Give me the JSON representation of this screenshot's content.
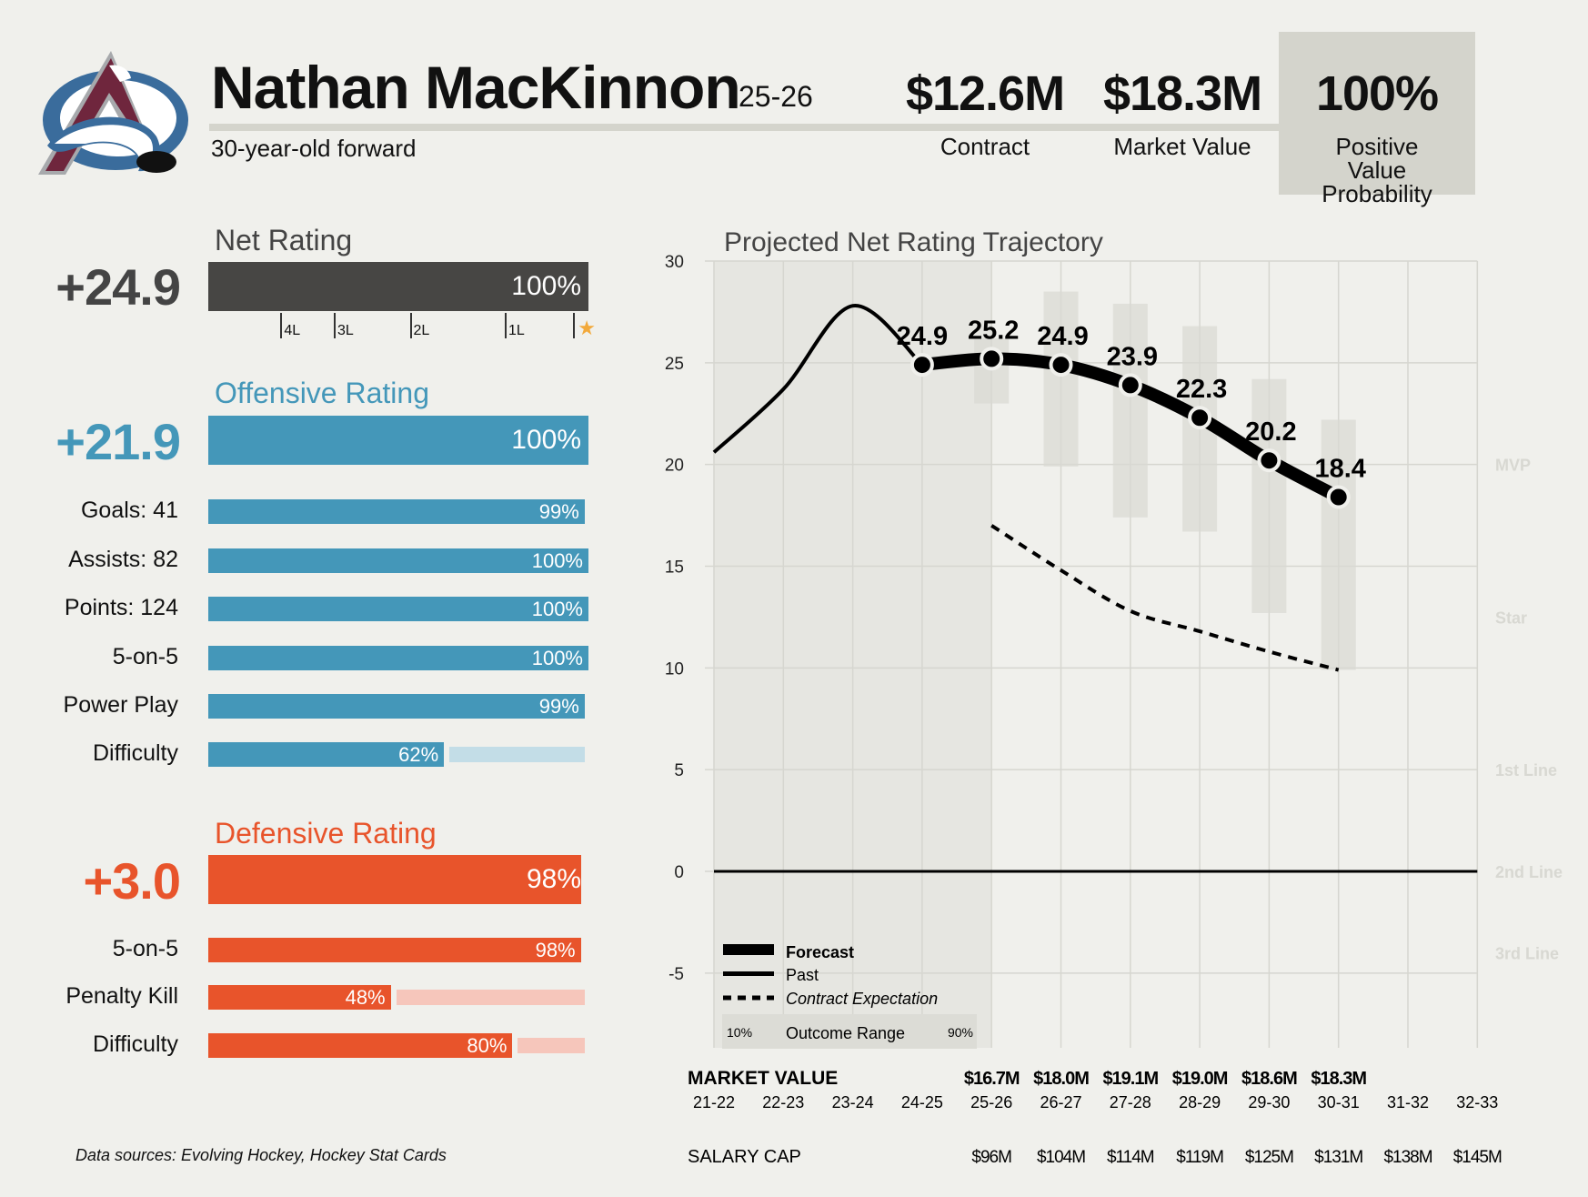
{
  "header": {
    "player_name": "Nathan MacKinnon",
    "season": "25-26",
    "subtitle": "30-year-old forward",
    "team_logo": "colorado-avalanche-logo",
    "kpis": [
      {
        "value": "$12.6M",
        "label": "Contract"
      },
      {
        "value": "$18.3M",
        "label": "Market Value"
      },
      {
        "value": "100%",
        "label": "Positive Value Probability"
      }
    ]
  },
  "colors": {
    "background": "#f0f0ec",
    "net": "#474644",
    "offense": "#4497b9",
    "offense_light": "#c3dde7",
    "defense": "#e8542b",
    "defense_light": "#f6c6bb",
    "star": "#f2a93b",
    "kpi_box": "#d4d4cc"
  },
  "net_rating": {
    "title": "Net Rating",
    "value": "+24.9",
    "percentile": 100,
    "percentile_label": "100%",
    "tier_ticks": [
      {
        "label": "4L",
        "position": 0.19
      },
      {
        "label": "3L",
        "position": 0.33
      },
      {
        "label": "2L",
        "position": 0.53
      },
      {
        "label": "1L",
        "position": 0.78
      },
      {
        "label": "star-icon",
        "position": 0.96
      }
    ]
  },
  "offensive_rating": {
    "title": "Offensive Rating",
    "value": "+21.9",
    "percentile": 100,
    "percentile_label": "100%",
    "rows": [
      {
        "label": "Goals: 41",
        "percentile": 99,
        "percentile_label": "99%"
      },
      {
        "label": "Assists: 82",
        "percentile": 100,
        "percentile_label": "100%"
      },
      {
        "label": "Points: 124",
        "percentile": 100,
        "percentile_label": "100%"
      },
      {
        "label": "5-on-5",
        "percentile": 100,
        "percentile_label": "100%"
      },
      {
        "label": "Power Play",
        "percentile": 99,
        "percentile_label": "99%"
      },
      {
        "label": "Difficulty",
        "percentile": 62,
        "percentile_label": "62%"
      }
    ]
  },
  "defensive_rating": {
    "title": "Defensive Rating",
    "value": "+3.0",
    "percentile": 98,
    "percentile_label": "98%",
    "rows": [
      {
        "label": "5-on-5",
        "percentile": 98,
        "percentile_label": "98%"
      },
      {
        "label": "Penalty Kill",
        "percentile": 48,
        "percentile_label": "48%"
      },
      {
        "label": "Difficulty",
        "percentile": 80,
        "percentile_label": "80%"
      }
    ]
  },
  "footer": {
    "data_sources": "Data sources: Evolving Hockey, Hockey Stat Cards"
  },
  "chart_data": {
    "type": "line",
    "title": "Projected Net Rating Trajectory",
    "xlabel": "",
    "ylabel": "",
    "x": [
      "21-22",
      "22-23",
      "23-24",
      "24-25",
      "25-26",
      "26-27",
      "27-28",
      "28-29",
      "29-30",
      "30-31",
      "31-32",
      "32-33"
    ],
    "ylim": [
      -8.5,
      30
    ],
    "yticks": [
      30,
      25,
      20,
      15,
      10,
      5,
      0,
      -5
    ],
    "grid": true,
    "past_shaded_through": "24-25",
    "tier_labels": [
      {
        "label": "MVP",
        "y": 20
      },
      {
        "label": "Star",
        "y": 12.5
      },
      {
        "label": "1st Line",
        "y": 5
      },
      {
        "label": "2nd Line",
        "y": 0
      },
      {
        "label": "3rd Line",
        "y": -4
      }
    ],
    "series": [
      {
        "name": "Past",
        "style": "solid",
        "x": [
          "21-22",
          "22-23",
          "23-24",
          "24-25"
        ],
        "values": [
          20.6,
          23.7,
          27.8,
          24.9
        ]
      },
      {
        "name": "Forecast",
        "style": "thick",
        "x": [
          "24-25",
          "25-26",
          "26-27",
          "27-28",
          "28-29",
          "29-30",
          "30-31"
        ],
        "values": [
          24.9,
          25.2,
          24.9,
          23.9,
          22.3,
          20.2,
          18.4
        ],
        "labels": [
          "24.9",
          "25.2",
          "24.9",
          "23.9",
          "22.3",
          "20.2",
          "18.4"
        ]
      },
      {
        "name": "Contract Expectation",
        "style": "dashed",
        "x": [
          "25-26",
          "26-27",
          "27-28",
          "28-29",
          "29-30",
          "30-31"
        ],
        "values": [
          17.0,
          14.8,
          12.8,
          11.8,
          10.8,
          9.9
        ]
      }
    ],
    "outcome_range": {
      "x": [
        "25-26",
        "26-27",
        "27-28",
        "28-29",
        "29-30",
        "30-31"
      ],
      "p10": [
        23.0,
        19.9,
        17.4,
        16.7,
        12.7,
        9.9
      ],
      "p90": [
        26.2,
        28.5,
        27.9,
        26.8,
        24.2,
        22.2
      ]
    },
    "legend": {
      "position": "bottom-left",
      "items": [
        "Forecast",
        "Past",
        "Contract Expectation"
      ],
      "range_label": "Outcome Range",
      "range_low": "10%",
      "range_high": "90%"
    },
    "market_value": {
      "label": "MARKET VALUE",
      "x": [
        "25-26",
        "26-27",
        "27-28",
        "28-29",
        "29-30",
        "30-31"
      ],
      "values": [
        "$16.7M",
        "$18.0M",
        "$19.1M",
        "$19.0M",
        "$18.6M",
        "$18.3M"
      ]
    },
    "salary_cap": {
      "label": "SALARY CAP",
      "x": [
        "25-26",
        "26-27",
        "27-28",
        "28-29",
        "29-30",
        "30-31",
        "31-32",
        "32-33"
      ],
      "values": [
        "$96M",
        "$104M",
        "$114M",
        "$119M",
        "$125M",
        "$131M",
        "$138M",
        "$145M"
      ]
    }
  }
}
